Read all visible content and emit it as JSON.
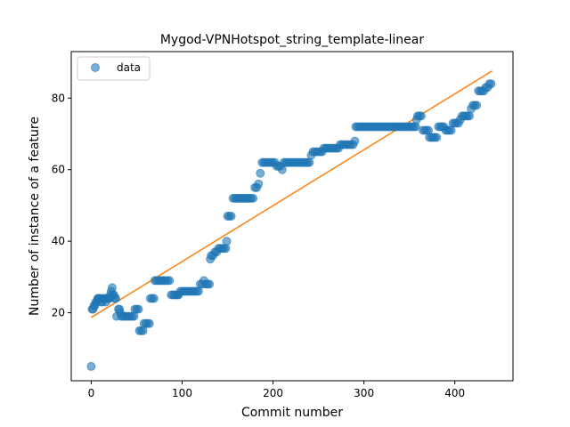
{
  "chart_data": {
    "type": "scatter",
    "title": "Mygod-VPNHotspot_string_template-linear",
    "xlabel": "Commit number",
    "ylabel": "Number of instance of a feature",
    "xlim": [
      -22,
      464
    ],
    "ylim": [
      1,
      93
    ],
    "xticks": [
      0,
      100,
      200,
      300,
      400
    ],
    "yticks": [
      20,
      40,
      60,
      80
    ],
    "grid": false,
    "legend": {
      "placement": "top-left",
      "entries": [
        "data"
      ]
    },
    "colors": {
      "data": "#1f77b4",
      "fit": "#ff7f0e"
    },
    "series": [
      {
        "name": "data",
        "kind": "scatter",
        "points": [
          [
            0,
            5
          ],
          [
            1,
            21
          ],
          [
            2,
            21
          ],
          [
            3,
            22
          ],
          [
            4,
            22
          ],
          [
            5,
            23
          ],
          [
            6,
            23
          ],
          [
            7,
            24
          ],
          [
            8,
            24
          ],
          [
            9,
            24
          ],
          [
            10,
            24
          ],
          [
            11,
            23
          ],
          [
            12,
            23
          ],
          [
            13,
            24
          ],
          [
            14,
            24
          ],
          [
            15,
            24
          ],
          [
            16,
            23
          ],
          [
            17,
            24
          ],
          [
            18,
            24
          ],
          [
            19,
            24
          ],
          [
            20,
            24
          ],
          [
            21,
            25
          ],
          [
            22,
            26
          ],
          [
            23,
            27
          ],
          [
            24,
            25
          ],
          [
            25,
            25
          ],
          [
            26,
            24
          ],
          [
            27,
            24
          ],
          [
            28,
            19
          ],
          [
            30,
            21
          ],
          [
            31,
            21
          ],
          [
            32,
            20
          ],
          [
            33,
            19
          ],
          [
            35,
            19
          ],
          [
            37,
            19
          ],
          [
            39,
            19
          ],
          [
            41,
            19
          ],
          [
            43,
            19
          ],
          [
            45,
            19
          ],
          [
            47,
            19
          ],
          [
            48,
            21
          ],
          [
            50,
            21
          ],
          [
            52,
            21
          ],
          [
            53,
            15
          ],
          [
            55,
            15
          ],
          [
            57,
            15
          ],
          [
            58,
            17
          ],
          [
            60,
            17
          ],
          [
            62,
            17
          ],
          [
            64,
            17
          ],
          [
            65,
            24
          ],
          [
            67,
            24
          ],
          [
            69,
            24
          ],
          [
            70,
            29
          ],
          [
            72,
            29
          ],
          [
            74,
            29
          ],
          [
            76,
            29
          ],
          [
            78,
            29
          ],
          [
            80,
            29
          ],
          [
            82,
            29
          ],
          [
            84,
            29
          ],
          [
            86,
            29
          ],
          [
            88,
            25
          ],
          [
            90,
            25
          ],
          [
            92,
            25
          ],
          [
            94,
            25
          ],
          [
            95,
            25
          ],
          [
            96,
            25
          ],
          [
            98,
            26
          ],
          [
            100,
            26
          ],
          [
            102,
            26
          ],
          [
            104,
            26
          ],
          [
            106,
            26
          ],
          [
            108,
            26
          ],
          [
            110,
            26
          ],
          [
            112,
            26
          ],
          [
            114,
            26
          ],
          [
            116,
            26
          ],
          [
            118,
            26
          ],
          [
            120,
            28
          ],
          [
            122,
            28
          ],
          [
            124,
            29
          ],
          [
            126,
            28
          ],
          [
            128,
            28
          ],
          [
            130,
            28
          ],
          [
            131,
            35
          ],
          [
            132,
            36
          ],
          [
            134,
            36
          ],
          [
            136,
            37
          ],
          [
            138,
            37
          ],
          [
            140,
            38
          ],
          [
            142,
            38
          ],
          [
            144,
            38
          ],
          [
            146,
            38
          ],
          [
            148,
            38
          ],
          [
            149,
            40
          ],
          [
            150,
            47
          ],
          [
            152,
            47
          ],
          [
            154,
            47
          ],
          [
            156,
            52
          ],
          [
            158,
            52
          ],
          [
            160,
            52
          ],
          [
            162,
            52
          ],
          [
            164,
            52
          ],
          [
            166,
            52
          ],
          [
            168,
            52
          ],
          [
            170,
            52
          ],
          [
            172,
            52
          ],
          [
            174,
            52
          ],
          [
            176,
            52
          ],
          [
            178,
            52
          ],
          [
            180,
            55
          ],
          [
            182,
            55
          ],
          [
            184,
            56
          ],
          [
            186,
            59
          ],
          [
            188,
            62
          ],
          [
            190,
            62
          ],
          [
            192,
            62
          ],
          [
            194,
            62
          ],
          [
            196,
            62
          ],
          [
            198,
            62
          ],
          [
            200,
            62
          ],
          [
            202,
            62
          ],
          [
            204,
            61
          ],
          [
            206,
            61
          ],
          [
            208,
            61
          ],
          [
            210,
            60
          ],
          [
            212,
            62
          ],
          [
            214,
            62
          ],
          [
            216,
            62
          ],
          [
            218,
            62
          ],
          [
            220,
            62
          ],
          [
            222,
            62
          ],
          [
            224,
            62
          ],
          [
            226,
            62
          ],
          [
            228,
            62
          ],
          [
            230,
            62
          ],
          [
            232,
            62
          ],
          [
            234,
            62
          ],
          [
            236,
            62
          ],
          [
            238,
            62
          ],
          [
            240,
            62
          ],
          [
            242,
            64
          ],
          [
            244,
            65
          ],
          [
            246,
            65
          ],
          [
            248,
            65
          ],
          [
            250,
            65
          ],
          [
            252,
            65
          ],
          [
            254,
            65
          ],
          [
            256,
            66
          ],
          [
            258,
            66
          ],
          [
            260,
            66
          ],
          [
            262,
            66
          ],
          [
            264,
            66
          ],
          [
            266,
            66
          ],
          [
            268,
            66
          ],
          [
            270,
            66
          ],
          [
            272,
            66
          ],
          [
            274,
            67
          ],
          [
            276,
            67
          ],
          [
            278,
            67
          ],
          [
            280,
            67
          ],
          [
            282,
            67
          ],
          [
            284,
            67
          ],
          [
            286,
            67
          ],
          [
            288,
            67
          ],
          [
            290,
            68
          ],
          [
            291,
            72
          ],
          [
            293,
            72
          ],
          [
            295,
            72
          ],
          [
            297,
            72
          ],
          [
            299,
            72
          ],
          [
            301,
            72
          ],
          [
            303,
            72
          ],
          [
            305,
            72
          ],
          [
            307,
            72
          ],
          [
            309,
            72
          ],
          [
            311,
            72
          ],
          [
            313,
            72
          ],
          [
            315,
            72
          ],
          [
            317,
            72
          ],
          [
            319,
            72
          ],
          [
            321,
            72
          ],
          [
            323,
            72
          ],
          [
            325,
            72
          ],
          [
            327,
            72
          ],
          [
            329,
            72
          ],
          [
            331,
            72
          ],
          [
            333,
            72
          ],
          [
            335,
            72
          ],
          [
            337,
            72
          ],
          [
            339,
            72
          ],
          [
            341,
            72
          ],
          [
            343,
            72
          ],
          [
            345,
            72
          ],
          [
            347,
            72
          ],
          [
            349,
            72
          ],
          [
            351,
            72
          ],
          [
            353,
            72
          ],
          [
            355,
            72
          ],
          [
            357,
            72
          ],
          [
            358,
            74
          ],
          [
            359,
            75
          ],
          [
            361,
            75
          ],
          [
            363,
            75
          ],
          [
            365,
            71
          ],
          [
            367,
            71
          ],
          [
            369,
            71
          ],
          [
            371,
            71
          ],
          [
            372,
            69
          ],
          [
            374,
            69
          ],
          [
            376,
            69
          ],
          [
            378,
            69
          ],
          [
            380,
            69
          ],
          [
            382,
            72
          ],
          [
            384,
            72
          ],
          [
            386,
            72
          ],
          [
            388,
            72
          ],
          [
            390,
            71
          ],
          [
            392,
            71
          ],
          [
            394,
            71
          ],
          [
            396,
            71
          ],
          [
            398,
            73
          ],
          [
            400,
            73
          ],
          [
            402,
            73
          ],
          [
            404,
            73
          ],
          [
            406,
            74
          ],
          [
            408,
            75
          ],
          [
            410,
            75
          ],
          [
            412,
            75
          ],
          [
            414,
            75
          ],
          [
            416,
            75
          ],
          [
            418,
            77
          ],
          [
            420,
            78
          ],
          [
            422,
            78
          ],
          [
            424,
            78
          ],
          [
            426,
            82
          ],
          [
            428,
            82
          ],
          [
            430,
            82
          ],
          [
            432,
            82
          ],
          [
            434,
            83
          ],
          [
            436,
            83
          ],
          [
            438,
            84
          ],
          [
            440,
            84
          ]
        ]
      },
      {
        "kind": "line",
        "x": [
          0,
          441
        ],
        "y": [
          18.7,
          87.6
        ]
      }
    ]
  }
}
